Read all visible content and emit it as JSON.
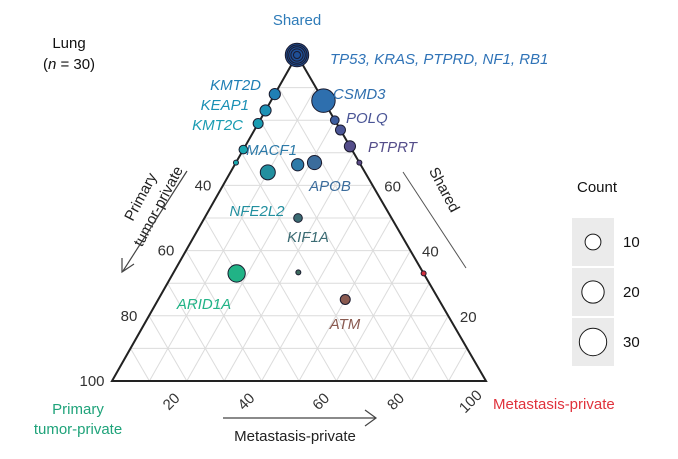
{
  "panel": {
    "title_line1": "Lung",
    "title_line2_italic": "n",
    "title_line2_rest": " = 30)",
    "title_line2_open": "("
  },
  "corners": {
    "top": {
      "text": "Shared",
      "color": "#2e7bb8"
    },
    "left_line1": {
      "text": "Primary",
      "color": "#1fa37a"
    },
    "left_line2": {
      "text": "tumor-private",
      "color": "#1fa37a"
    },
    "right": {
      "text": "Metastasis-private",
      "color": "#e0323c"
    }
  },
  "axis_names": {
    "bottom": "Metastasis-private",
    "left_line1": "Primary",
    "left_line2": "tumor-private",
    "right": "Shared"
  },
  "legend": {
    "title": "Count",
    "entries": [
      {
        "label": "10",
        "value": 10
      },
      {
        "label": "20",
        "value": 20
      },
      {
        "label": "30",
        "value": 30
      }
    ]
  },
  "chart_data": {
    "type": "scatter",
    "subtype": "ternary",
    "components": [
      "Shared",
      "Primary tumor-private",
      "Metastasis-private"
    ],
    "ticks": {
      "bottom": [
        "20",
        "40",
        "60",
        "80",
        "100"
      ],
      "left": [
        "40",
        "60",
        "80",
        "100"
      ],
      "right": [
        "20",
        "40",
        "60"
      ]
    },
    "grid": true,
    "legend_placement": "right",
    "points": [
      {
        "label": "",
        "shared": 100,
        "primary": 0,
        "metastasis": 0,
        "count": 22,
        "color": "#1f4f95"
      },
      {
        "label": "",
        "shared": 100,
        "primary": 0,
        "metastasis": 0,
        "count": 16,
        "color": "#1f4f95"
      },
      {
        "label": "",
        "shared": 100,
        "primary": 0,
        "metastasis": 0,
        "count": 11,
        "color": "#1f4f95"
      },
      {
        "label": "",
        "shared": 100,
        "primary": 0,
        "metastasis": 0,
        "count": 6,
        "color": "#1f4f95"
      },
      {
        "label": "",
        "shared": 100,
        "primary": 0,
        "metastasis": 0,
        "count": 2,
        "color": "#1f4f95"
      },
      {
        "label": "CSMD3",
        "shared": 86,
        "primary": 0,
        "metastasis": 14,
        "count": 22,
        "color": "#2e6fae"
      },
      {
        "label": "",
        "shared": 80,
        "primary": 0,
        "metastasis": 20,
        "count": 3,
        "color": "#3d5d9e"
      },
      {
        "label": "POLQ",
        "shared": 77,
        "primary": 0,
        "metastasis": 23,
        "count": 4,
        "color": "#4a5596"
      },
      {
        "label": "PTPRT",
        "shared": 72,
        "primary": 0,
        "metastasis": 28,
        "count": 5,
        "color": "#544d8a"
      },
      {
        "label": "",
        "shared": 67,
        "primary": 0,
        "metastasis": 33,
        "count": 1,
        "color": "#5b4a86"
      },
      {
        "label": "KMT2D",
        "shared": 88,
        "primary": 12,
        "metastasis": 0,
        "count": 5,
        "color": "#1f7fb5"
      },
      {
        "label": "KEAP1",
        "shared": 83,
        "primary": 17,
        "metastasis": 0,
        "count": 5,
        "color": "#1c91b5"
      },
      {
        "label": "KMT2C",
        "shared": 79,
        "primary": 21,
        "metastasis": 0,
        "count": 4,
        "color": "#1a9cb2"
      },
      {
        "label": "",
        "shared": 71,
        "primary": 29,
        "metastasis": 0,
        "count": 3,
        "color": "#1aa6b0"
      },
      {
        "label": "",
        "shared": 67,
        "primary": 33,
        "metastasis": 0,
        "count": 1,
        "color": "#19a9ad"
      },
      {
        "label": "MACF1",
        "shared": 67,
        "primary": 17,
        "metastasis": 17,
        "count": 6,
        "color": "#2d7aa8"
      },
      {
        "label": "APOB",
        "shared": 67,
        "primary": 12,
        "metastasis": 21,
        "count": 8,
        "color": "#3b6c9c"
      },
      {
        "label": "NFE2L2",
        "shared": 64,
        "primary": 26,
        "metastasis": 10,
        "count": 9,
        "color": "#228f9f"
      },
      {
        "label": "KIF1A",
        "shared": 50,
        "primary": 25,
        "metastasis": 25,
        "count": 3,
        "color": "#3b6b73"
      },
      {
        "label": "ARID1A",
        "shared": 33,
        "primary": 50,
        "metastasis": 17,
        "count": 12,
        "color": "#21b386"
      },
      {
        "label": "",
        "shared": 33,
        "primary": 33,
        "metastasis": 33,
        "count": 1,
        "color": "#3d6b5e"
      },
      {
        "label": "ATM",
        "shared": 25,
        "primary": 25,
        "metastasis": 50,
        "count": 4,
        "color": "#8a5a50"
      },
      {
        "label": "",
        "shared": 33,
        "primary": 0,
        "metastasis": 67,
        "count": 1,
        "color": "#d0303d"
      }
    ],
    "annotations": [
      {
        "text": "TP53, KRAS, PTPRD, NF1, RB1",
        "color": "#2f73b7"
      },
      {
        "text": "CSMD3",
        "color": "#2f6fae"
      },
      {
        "text": "POLQ",
        "color": "#4a5596"
      },
      {
        "text": "PTPRT",
        "color": "#544d8a"
      },
      {
        "text": "KMT2D",
        "color": "#1f7fb5"
      },
      {
        "text": "KEAP1",
        "color": "#1c91b5"
      },
      {
        "text": "KMT2C",
        "color": "#1a9cb2"
      },
      {
        "text": "MACF1",
        "color": "#2d7aa8"
      },
      {
        "text": "APOB",
        "color": "#3b6c9c"
      },
      {
        "text": "NFE2L2",
        "color": "#228f9f"
      },
      {
        "text": "KIF1A",
        "color": "#3b6b73"
      },
      {
        "text": "ARID1A",
        "color": "#21b386"
      },
      {
        "text": "ATM",
        "color": "#8a5a50"
      }
    ]
  }
}
